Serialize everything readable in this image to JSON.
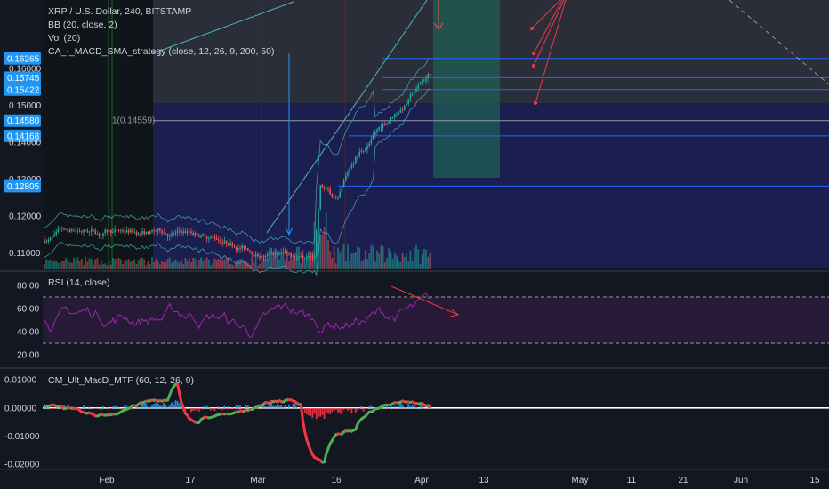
{
  "main_legend": {
    "title": "XRP / U.S. Dollar, 240, BITSTAMP",
    "indicators": [
      "BB (20, close, 2)",
      "Vol (20)",
      "CA_-_MACD_SMA_strategy (close, 12, 26, 9, 200, 50)"
    ]
  },
  "rsi_legend": "RSI (14, close)",
  "macd_legend": "CM_Ult_MacD_MTF (60, 12, 26, 9)",
  "fib_label": "1(0.14559)",
  "colors": {
    "background": "#131722",
    "price_tag": "#2196f3",
    "price_tag_green": "#26a69a",
    "rsi_line": "#9c27b0",
    "fill_blue": "#1a1f4f",
    "fill_gray": "#2a2e39",
    "up": "#26a69a",
    "down": "#ef5350",
    "level_line": "#2962ff",
    "macd_green": "#4caf50",
    "macd_red": "#f23645",
    "macd_hist_blue": "#2196f3",
    "arrow_red": "#f23645"
  },
  "chart_data": [
    {
      "type": "candlestick",
      "title": "XRP / U.S. Dollar, 240, BITSTAMP",
      "price_axis_labels": [
        "0.16265",
        "0.16000",
        "0.15745",
        "0.15422",
        "0.15000",
        "0.14580",
        "0.14168",
        "0.14000",
        "0.13000",
        "0.12823",
        "0.12805",
        "0.12000",
        "0.11000"
      ],
      "highlighted_price_tags": [
        "0.16265",
        "0.15745",
        "0.15422",
        "0.14580",
        "0.14168",
        "0.12805"
      ],
      "highlighted_price_tag_green": [
        "0.12823"
      ],
      "axis_labels_dark": [
        "0.16000",
        "0.15000",
        "0.14000",
        "0.13000",
        "0.12000",
        "0.11000"
      ],
      "horizontal_levels": [
        0.16265,
        0.15745,
        0.15422,
        0.1458,
        0.14168,
        0.12805
      ],
      "fib_level": 0.14559,
      "ylim": [
        0.1055,
        0.1785
      ]
    },
    {
      "type": "line",
      "title": "RSI (14, close)",
      "tick_labels": [
        "80.00",
        "60.00",
        "40.00",
        "20.00"
      ],
      "upper_band": 70,
      "lower_band": 30,
      "ylim": [
        10,
        90
      ]
    },
    {
      "type": "line",
      "title": "CM_Ult_MacD_MTF (60, 12, 26, 9)",
      "tick_labels": [
        "0.01000",
        "0.00000",
        "-0.01000",
        "-0.02000"
      ],
      "ylim": [
        -0.0215,
        0.0135
      ]
    }
  ],
  "time_axis": [
    "Feb",
    "17",
    "Mar",
    "16",
    "Apr",
    "13",
    "May",
    "11",
    "21",
    "Jun",
    "15"
  ]
}
